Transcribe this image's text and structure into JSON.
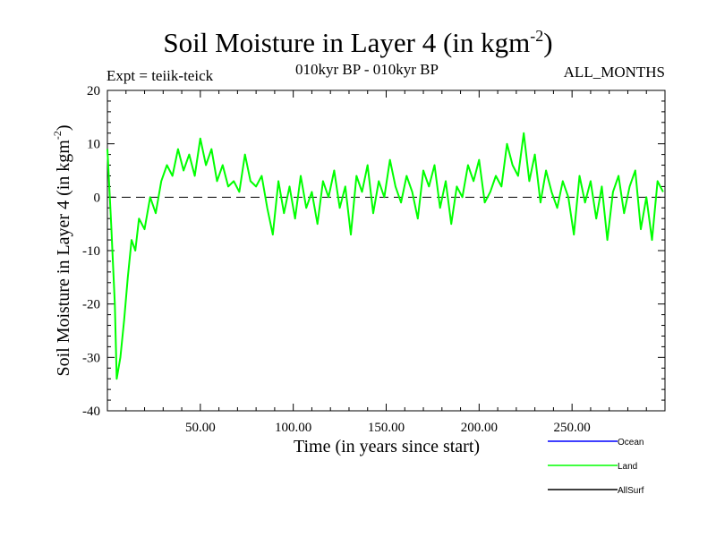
{
  "header": {
    "title_main": "Soil Moisture in Layer 4 (in kgm",
    "title_sup": "-2",
    "title_close": ")",
    "expt": "Expt = teiik-teick",
    "period": "010kyr BP - 010kyr BP",
    "months": "ALL_MONTHS"
  },
  "chart_data": {
    "type": "line",
    "title": "Soil Moisture in Layer 4 (in kgm-2)",
    "xlabel": "Time (in years since start)",
    "ylabel_main": "Soil Moisture in Layer 4 (in kgm",
    "ylabel_sup": "-2",
    "ylabel_close": ")",
    "xlim": [
      0,
      300
    ],
    "ylim": [
      -40,
      20
    ],
    "xticks": [
      50,
      100,
      150,
      200,
      250
    ],
    "xtick_labels": [
      "50.00",
      "100.00",
      "150.00",
      "200.00",
      "250.00"
    ],
    "yticks": [
      -40,
      -30,
      -20,
      -10,
      0,
      10,
      20
    ],
    "ytick_labels": [
      "-40",
      "-30",
      "-20",
      "-10",
      "0",
      "10",
      "20"
    ],
    "zero_line": true,
    "legend": [
      {
        "name": "Ocean",
        "color": "#0000ff"
      },
      {
        "name": "Land",
        "color": "#00ff00"
      },
      {
        "name": "AllSurf",
        "color": "#000000"
      }
    ],
    "series": [
      {
        "name": "Land",
        "color": "#00ff00",
        "x": [
          0,
          2,
          4,
          5,
          7,
          9,
          11,
          13,
          15,
          17,
          20,
          23,
          26,
          29,
          32,
          35,
          38,
          41,
          44,
          47,
          50,
          53,
          56,
          59,
          62,
          65,
          68,
          71,
          74,
          77,
          80,
          83,
          86,
          89,
          92,
          95,
          98,
          101,
          104,
          107,
          110,
          113,
          116,
          119,
          122,
          125,
          128,
          131,
          134,
          137,
          140,
          143,
          146,
          149,
          152,
          155,
          158,
          161,
          164,
          167,
          170,
          173,
          176,
          179,
          182,
          185,
          188,
          191,
          194,
          197,
          200,
          203,
          206,
          209,
          212,
          215,
          218,
          221,
          224,
          227,
          230,
          233,
          236,
          239,
          242,
          245,
          248,
          251,
          254,
          257,
          260,
          263,
          266,
          269,
          272,
          275,
          278,
          281,
          284,
          287,
          290,
          293,
          296,
          299
        ],
        "values": [
          9,
          -5,
          -20,
          -34,
          -30,
          -23,
          -15,
          -8,
          -10,
          -4,
          -6,
          0,
          -3,
          3,
          6,
          4,
          9,
          5,
          8,
          4,
          11,
          6,
          9,
          3,
          6,
          2,
          3,
          1,
          8,
          3,
          2,
          4,
          -2,
          -7,
          3,
          -3,
          2,
          -4,
          4,
          -2,
          1,
          -5,
          3,
          0,
          5,
          -2,
          2,
          -7,
          4,
          1,
          6,
          -3,
          3,
          0,
          7,
          2,
          -1,
          4,
          1,
          -4,
          5,
          2,
          6,
          -2,
          3,
          -5,
          2,
          0,
          6,
          3,
          7,
          -1,
          1,
          4,
          2,
          10,
          6,
          4,
          12,
          3,
          8,
          -1,
          5,
          1,
          -2,
          3,
          0,
          -7,
          4,
          -1,
          3,
          -4,
          2,
          -8,
          1,
          4,
          -3,
          2,
          5,
          -6,
          0,
          -8,
          3,
          1
        ]
      }
    ]
  }
}
